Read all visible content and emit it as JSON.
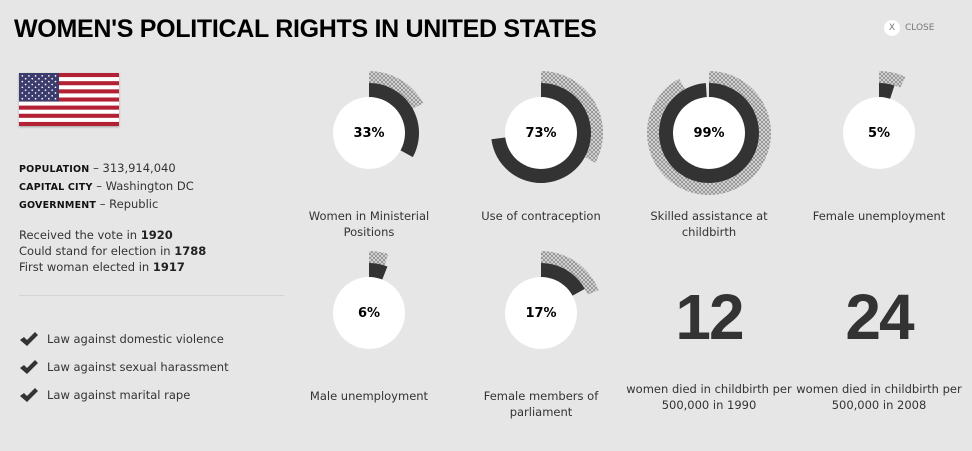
{
  "header": {
    "title": "WOMEN'S POLITICAL RIGHTS IN UNITED STATES",
    "close_icon": "X",
    "close_label": "CLOSE"
  },
  "country": {
    "flag": "us-flag",
    "facts": [
      {
        "key": "POPULATION",
        "value": " – 313,914,040"
      },
      {
        "key": "CAPITAL CITY",
        "value": " – Washington DC"
      },
      {
        "key": "GOVERNMENT",
        "value": " – Republic"
      }
    ],
    "dates": [
      {
        "text": "Received the vote in ",
        "year": "1920"
      },
      {
        "text": "Could stand for election in ",
        "year": "1788"
      },
      {
        "text": "First woman elected in ",
        "year": "1917"
      }
    ],
    "laws": [
      "Law against domestic violence",
      "Law against sexual harassment",
      "Law against marital rape"
    ]
  },
  "colors": {
    "background": "#e6e6e6",
    "ring": "#333333",
    "hatch": "#999999",
    "center": "#ffffff"
  },
  "chart_data": {
    "type": "donut",
    "items": [
      {
        "label": "Women in Ministerial Positions",
        "value": 33,
        "display": "33%",
        "comparison": 17
      },
      {
        "label": "Use of contraception",
        "value": 73,
        "display": "73%",
        "comparison": 33
      },
      {
        "label": "Skilled assistance at childbirth",
        "value": 99,
        "display": "99%",
        "comparison": 92
      },
      {
        "label": "Female unemployment",
        "value": 5,
        "display": "5%",
        "comparison": 7
      },
      {
        "label": "Male unemployment",
        "value": 6,
        "display": "6%",
        "comparison": 5
      },
      {
        "label": "Female members of parliament",
        "value": 17,
        "display": "17%",
        "comparison": 19
      }
    ]
  },
  "stats": [
    {
      "number": "12",
      "label": "women died in childbirth per 500,000 in 1990"
    },
    {
      "number": "24",
      "label": "women died in childbirth per 500,000 in 2008"
    }
  ]
}
